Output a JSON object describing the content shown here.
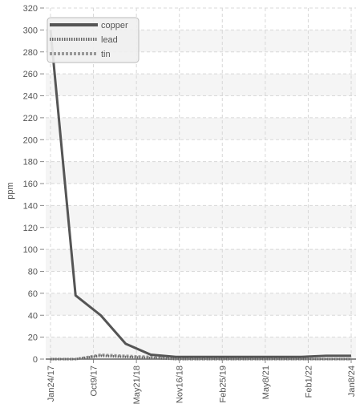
{
  "chart_data": {
    "type": "line",
    "ylabel": "ppm",
    "ylim": [
      0,
      320
    ],
    "yticks": [
      0,
      20,
      40,
      60,
      80,
      100,
      120,
      140,
      160,
      180,
      200,
      220,
      240,
      260,
      280,
      300,
      320
    ],
    "xtick_labels": [
      "Jan24/17",
      "Oct9/17",
      "May21/18",
      "Nov16/18",
      "Feb25/19",
      "May8/21",
      "Feb1/22",
      "Jan8/24"
    ],
    "grid": true,
    "legend_position": "top-left",
    "series": [
      {
        "name": "copper",
        "color": "#555555",
        "style": "solid",
        "values": [
          300,
          58,
          40,
          14,
          4,
          2,
          2,
          2,
          2,
          2,
          2,
          3,
          3
        ]
      },
      {
        "name": "lead",
        "color": "#666666",
        "style": "dotted",
        "values": [
          0,
          0,
          3,
          2,
          1,
          0,
          0,
          0,
          0,
          0,
          0,
          0,
          0
        ]
      },
      {
        "name": "tin",
        "color": "#999999",
        "style": "dashed",
        "values": [
          0,
          0,
          4,
          3,
          2,
          0,
          0,
          0,
          0,
          0,
          0,
          0,
          0
        ]
      }
    ]
  }
}
